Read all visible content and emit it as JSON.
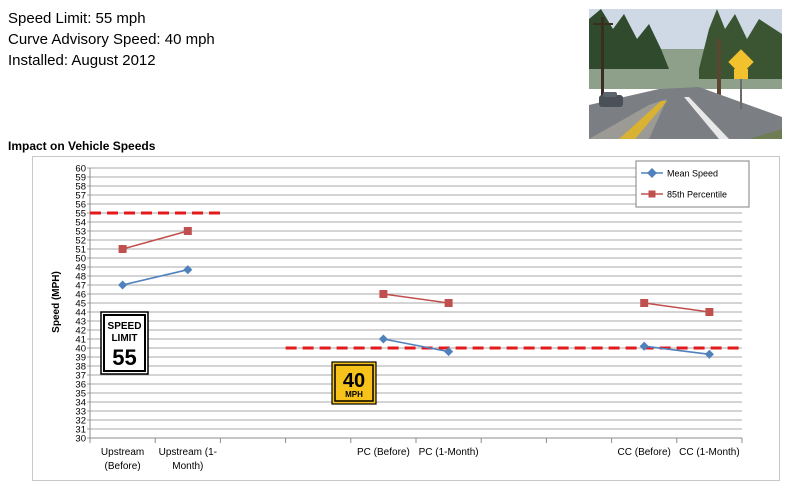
{
  "info": {
    "speed_limit": "Speed Limit: 55 mph",
    "curve_advisory": "Curve Advisory Speed: 40 mph",
    "installed": "Installed: August 2012"
  },
  "section_title": "Impact on Vehicle Speeds",
  "signs": {
    "speed_limit_line1": "SPEED",
    "speed_limit_line2": "LIMIT",
    "speed_limit_value": "55",
    "advisory_value": "40",
    "advisory_unit": "MPH"
  },
  "chart_data": {
    "type": "line",
    "title": "",
    "ylabel": "Speed (MPH)",
    "xlabel": "",
    "ylim": [
      30,
      60
    ],
    "yticks": [
      30,
      31,
      32,
      33,
      34,
      35,
      36,
      37,
      38,
      39,
      40,
      41,
      42,
      43,
      44,
      45,
      46,
      47,
      48,
      49,
      50,
      51,
      52,
      53,
      54,
      55,
      56,
      57,
      58,
      59,
      60
    ],
    "grid": true,
    "legend_position": "top-right",
    "categories": [
      "Upstream (Before)",
      "Upstream (1-Month)",
      "",
      "",
      "PC (Before)",
      "PC (1-Month)",
      "",
      "",
      "CC (Before)",
      "CC (1-Month)"
    ],
    "category_labels": [
      [
        "Upstream",
        "(Before)"
      ],
      [
        "Upstream (1-",
        "Month)"
      ],
      [],
      [],
      [
        "PC (Before)"
      ],
      [
        "PC (1-Month)"
      ],
      [],
      [],
      [
        "CC (Before)"
      ],
      [
        "CC (1-Month)"
      ]
    ],
    "series": [
      {
        "name": "Mean Speed",
        "color": "#4f81bd",
        "marker": "diamond",
        "segments": [
          [
            [
              0,
              47.0
            ],
            [
              1,
              48.7
            ]
          ],
          [
            [
              4,
              41.0
            ],
            [
              5,
              39.6
            ]
          ],
          [
            [
              8,
              40.2
            ],
            [
              9,
              39.3
            ]
          ]
        ]
      },
      {
        "name": "85th Percentile",
        "color": "#c0504d",
        "marker": "square",
        "segments": [
          [
            [
              0,
              51.0
            ],
            [
              1,
              53.0
            ]
          ],
          [
            [
              4,
              46.0
            ],
            [
              5,
              45.0
            ]
          ],
          [
            [
              8,
              45.0
            ],
            [
              9,
              44.0
            ]
          ]
        ]
      }
    ],
    "reference_lines": [
      {
        "value": 55,
        "from": 0,
        "to": 2,
        "color": "#e31a1c",
        "style": "dashed"
      },
      {
        "value": 40,
        "from": 3,
        "to": 10,
        "color": "#e31a1c",
        "style": "dashed"
      }
    ]
  }
}
